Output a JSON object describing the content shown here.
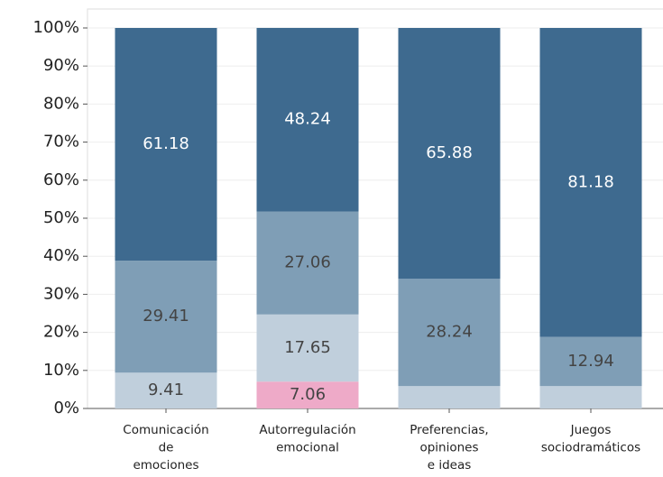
{
  "chart_data": {
    "type": "stacked_bar_100",
    "categories": [
      "Comunicación\nde\nemociones",
      "Autorregulación\nemocional",
      "Preferencias,\nopiniones\ne ideas",
      "Juegos\nsociodramáticos"
    ],
    "series": [
      {
        "color": "#eeaac8",
        "label_color": "#444444",
        "values": [
          null,
          7.06,
          null,
          null
        ]
      },
      {
        "color": "#c0cfdc",
        "label_color": "#444444",
        "values": [
          9.41,
          17.65,
          5.88,
          5.88
        ]
      },
      {
        "color": "#7f9eb6",
        "label_color": "#444444",
        "values": [
          29.41,
          27.06,
          28.24,
          12.94
        ]
      },
      {
        "color": "#3e6a8f",
        "label_color": "#ffffff",
        "values": [
          61.18,
          48.24,
          65.88,
          81.18
        ]
      }
    ],
    "ylim": [
      0,
      100
    ],
    "yticks": [
      {
        "value": 0,
        "label": "0%"
      },
      {
        "value": 10,
        "label": "10%"
      },
      {
        "value": 20,
        "label": "20%"
      },
      {
        "value": 30,
        "label": "30%"
      },
      {
        "value": 40,
        "label": "40%"
      },
      {
        "value": 50,
        "label": "50%"
      },
      {
        "value": 60,
        "label": "60%"
      },
      {
        "value": 70,
        "label": "70%"
      },
      {
        "value": 80,
        "label": "80%"
      },
      {
        "value": 90,
        "label": "90%"
      },
      {
        "value": 100,
        "label": "100%"
      }
    ],
    "grid": true
  }
}
